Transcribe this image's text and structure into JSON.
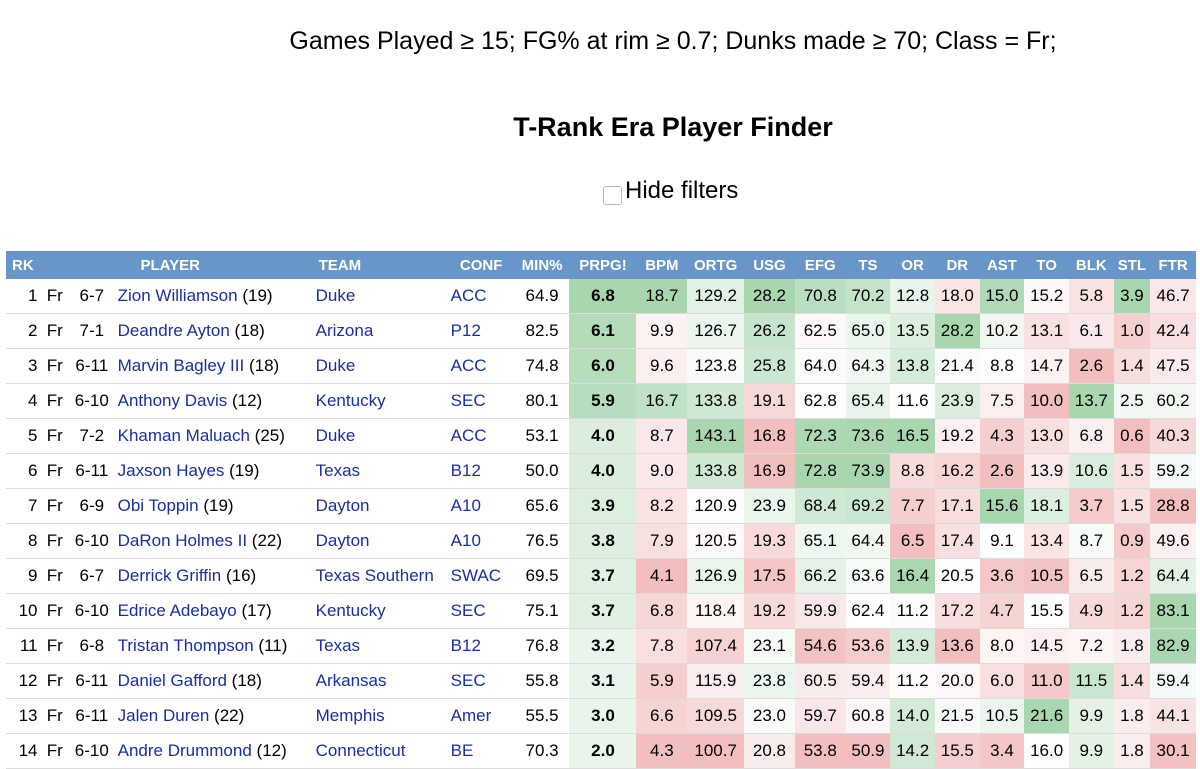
{
  "filters_text": "Games Played ≥ 15; FG% at rim ≥ 0.7; Dunks made ≥ 70; Class = Fr;",
  "page_title": "T-Rank Era Player Finder",
  "hide_filters_label": "Hide filters",
  "columns": [
    "RK",
    "PLAYER",
    "TEAM",
    "CONF",
    "MIN%",
    "PRPG!",
    "BPM",
    "ORTG",
    "USG",
    "EFG",
    "TS",
    "OR",
    "DR",
    "AST",
    "TO",
    "BLK",
    "STL",
    "FTR"
  ],
  "rows": [
    {
      "rk": "1",
      "cls": "Fr",
      "ht": "6-7",
      "name": "Zion Williamson",
      "age": "(19)",
      "team": "Duke",
      "conf": "ACC",
      "min": "64.9",
      "prpg": "6.8",
      "bpm": "18.7",
      "ortg": "129.2",
      "usg": "28.2",
      "efg": "70.8",
      "ts": "70.2",
      "or": "12.8",
      "dr": "18.0",
      "ast": "15.0",
      "to": "15.2",
      "blk": "5.8",
      "stl": "3.9",
      "ftr": "46.7"
    },
    {
      "rk": "2",
      "cls": "Fr",
      "ht": "7-1",
      "name": "Deandre Ayton",
      "age": "(18)",
      "team": "Arizona",
      "conf": "P12",
      "min": "82.5",
      "prpg": "6.1",
      "bpm": "9.9",
      "ortg": "126.7",
      "usg": "26.2",
      "efg": "62.5",
      "ts": "65.0",
      "or": "13.5",
      "dr": "28.2",
      "ast": "10.2",
      "to": "13.1",
      "blk": "6.1",
      "stl": "1.0",
      "ftr": "42.4"
    },
    {
      "rk": "3",
      "cls": "Fr",
      "ht": "6-11",
      "name": "Marvin Bagley III",
      "age": "(18)",
      "team": "Duke",
      "conf": "ACC",
      "min": "74.8",
      "prpg": "6.0",
      "bpm": "9.6",
      "ortg": "123.8",
      "usg": "25.8",
      "efg": "64.0",
      "ts": "64.3",
      "or": "13.8",
      "dr": "21.4",
      "ast": "8.8",
      "to": "14.7",
      "blk": "2.6",
      "stl": "1.4",
      "ftr": "47.5"
    },
    {
      "rk": "4",
      "cls": "Fr",
      "ht": "6-10",
      "name": "Anthony Davis",
      "age": "(12)",
      "team": "Kentucky",
      "conf": "SEC",
      "min": "80.1",
      "prpg": "5.9",
      "bpm": "16.7",
      "ortg": "133.8",
      "usg": "19.1",
      "efg": "62.8",
      "ts": "65.4",
      "or": "11.6",
      "dr": "23.9",
      "ast": "7.5",
      "to": "10.0",
      "blk": "13.7",
      "stl": "2.5",
      "ftr": "60.2"
    },
    {
      "rk": "5",
      "cls": "Fr",
      "ht": "7-2",
      "name": "Khaman Maluach",
      "age": "(25)",
      "team": "Duke",
      "conf": "ACC",
      "min": "53.1",
      "prpg": "4.0",
      "bpm": "8.7",
      "ortg": "143.1",
      "usg": "16.8",
      "efg": "72.3",
      "ts": "73.6",
      "or": "16.5",
      "dr": "19.2",
      "ast": "4.3",
      "to": "13.0",
      "blk": "6.8",
      "stl": "0.6",
      "ftr": "40.3"
    },
    {
      "rk": "6",
      "cls": "Fr",
      "ht": "6-11",
      "name": "Jaxson Hayes",
      "age": "(19)",
      "team": "Texas",
      "conf": "B12",
      "min": "50.0",
      "prpg": "4.0",
      "bpm": "9.0",
      "ortg": "133.8",
      "usg": "16.9",
      "efg": "72.8",
      "ts": "73.9",
      "or": "8.8",
      "dr": "16.2",
      "ast": "2.6",
      "to": "13.9",
      "blk": "10.6",
      "stl": "1.5",
      "ftr": "59.2"
    },
    {
      "rk": "7",
      "cls": "Fr",
      "ht": "6-9",
      "name": "Obi Toppin",
      "age": "(19)",
      "team": "Dayton",
      "conf": "A10",
      "min": "65.6",
      "prpg": "3.9",
      "bpm": "8.2",
      "ortg": "120.9",
      "usg": "23.9",
      "efg": "68.4",
      "ts": "69.2",
      "or": "7.7",
      "dr": "17.1",
      "ast": "15.6",
      "to": "18.1",
      "blk": "3.7",
      "stl": "1.5",
      "ftr": "28.8"
    },
    {
      "rk": "8",
      "cls": "Fr",
      "ht": "6-10",
      "name": "DaRon Holmes II",
      "age": "(22)",
      "team": "Dayton",
      "conf": "A10",
      "min": "76.5",
      "prpg": "3.8",
      "bpm": "7.9",
      "ortg": "120.5",
      "usg": "19.3",
      "efg": "65.1",
      "ts": "64.4",
      "or": "6.5",
      "dr": "17.4",
      "ast": "9.1",
      "to": "13.4",
      "blk": "8.7",
      "stl": "0.9",
      "ftr": "49.6"
    },
    {
      "rk": "9",
      "cls": "Fr",
      "ht": "6-7",
      "name": "Derrick Griffin",
      "age": "(16)",
      "team": "Texas Southern",
      "conf": "SWAC",
      "min": "69.5",
      "prpg": "3.7",
      "bpm": "4.1",
      "ortg": "126.9",
      "usg": "17.5",
      "efg": "66.2",
      "ts": "63.6",
      "or": "16.4",
      "dr": "20.5",
      "ast": "3.6",
      "to": "10.5",
      "blk": "6.5",
      "stl": "1.2",
      "ftr": "64.4"
    },
    {
      "rk": "10",
      "cls": "Fr",
      "ht": "6-10",
      "name": "Edrice Adebayo",
      "age": "(17)",
      "team": "Kentucky",
      "conf": "SEC",
      "min": "75.1",
      "prpg": "3.7",
      "bpm": "6.8",
      "ortg": "118.4",
      "usg": "19.2",
      "efg": "59.9",
      "ts": "62.4",
      "or": "11.2",
      "dr": "17.2",
      "ast": "4.7",
      "to": "15.5",
      "blk": "4.9",
      "stl": "1.2",
      "ftr": "83.1"
    },
    {
      "rk": "11",
      "cls": "Fr",
      "ht": "6-8",
      "name": "Tristan Thompson",
      "age": "(11)",
      "team": "Texas",
      "conf": "B12",
      "min": "76.8",
      "prpg": "3.2",
      "bpm": "7.8",
      "ortg": "107.4",
      "usg": "23.1",
      "efg": "54.6",
      "ts": "53.6",
      "or": "13.9",
      "dr": "13.6",
      "ast": "8.0",
      "to": "14.5",
      "blk": "7.2",
      "stl": "1.8",
      "ftr": "82.9"
    },
    {
      "rk": "12",
      "cls": "Fr",
      "ht": "6-11",
      "name": "Daniel Gafford",
      "age": "(18)",
      "team": "Arkansas",
      "conf": "SEC",
      "min": "55.8",
      "prpg": "3.1",
      "bpm": "5.9",
      "ortg": "115.9",
      "usg": "23.8",
      "efg": "60.5",
      "ts": "59.4",
      "or": "11.2",
      "dr": "20.0",
      "ast": "6.0",
      "to": "11.0",
      "blk": "11.5",
      "stl": "1.4",
      "ftr": "59.4"
    },
    {
      "rk": "13",
      "cls": "Fr",
      "ht": "6-11",
      "name": "Jalen Duren",
      "age": "(22)",
      "team": "Memphis",
      "conf": "Amer",
      "min": "55.5",
      "prpg": "3.0",
      "bpm": "6.6",
      "ortg": "109.5",
      "usg": "23.0",
      "efg": "59.7",
      "ts": "60.8",
      "or": "14.0",
      "dr": "21.5",
      "ast": "10.5",
      "to": "21.6",
      "blk": "9.9",
      "stl": "1.8",
      "ftr": "44.1"
    },
    {
      "rk": "14",
      "cls": "Fr",
      "ht": "6-10",
      "name": "Andre Drummond",
      "age": "(12)",
      "team": "Connecticut",
      "conf": "BE",
      "min": "70.3",
      "prpg": "2.0",
      "bpm": "4.3",
      "ortg": "100.7",
      "usg": "20.8",
      "efg": "53.8",
      "ts": "50.9",
      "or": "14.2",
      "dr": "15.5",
      "ast": "3.4",
      "to": "16.0",
      "blk": "9.9",
      "stl": "1.8",
      "ftr": "30.1"
    }
  ]
}
